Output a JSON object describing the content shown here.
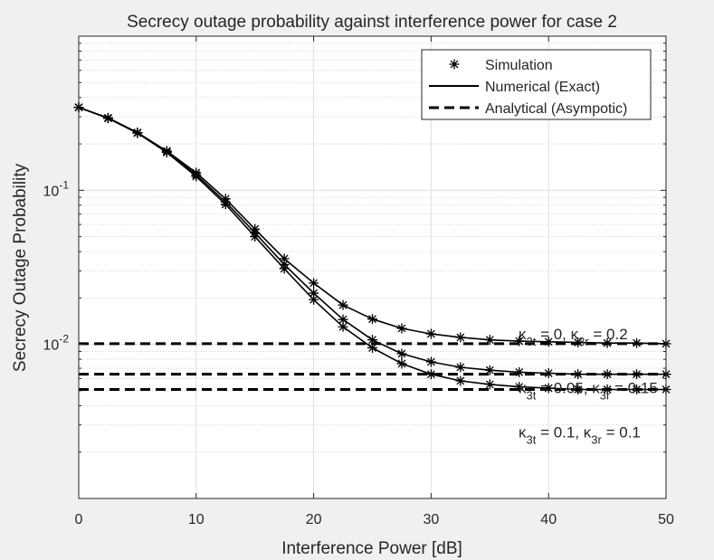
{
  "chart_data": {
    "type": "line",
    "title": "Secrecy outage probability against interference power for case 2",
    "xlabel": "Interference Power [dB]",
    "ylabel": "Secrecy Outage Probability",
    "xlim": [
      0,
      50
    ],
    "ylim": [
      0.001,
      1
    ],
    "yscale": "log",
    "grid": true,
    "legend_position": "top-right",
    "x_ticks": [
      0,
      10,
      20,
      30,
      40,
      50
    ],
    "y_ticks": [
      {
        "value": 0.1,
        "base": "10",
        "exp": "-1"
      },
      {
        "value": 0.01,
        "base": "10",
        "exp": "-2"
      }
    ],
    "legend": [
      "Simulation",
      "Numerical (Exact)",
      "Analytical (Asympotic)"
    ],
    "x": [
      0,
      2.5,
      5,
      7.5,
      10,
      12.5,
      15,
      17.5,
      20,
      22.5,
      25,
      27.5,
      30,
      32.5,
      35,
      37.5,
      40,
      42.5,
      45,
      47.5,
      50
    ],
    "series": [
      {
        "annotation": {
          "kappa_t": "3t",
          "val_t": "0",
          "kappa_r": "3r",
          "val_r": "0.2"
        },
        "numerical": [
          0.345,
          0.295,
          0.237,
          0.18,
          0.13,
          0.088,
          0.056,
          0.036,
          0.025,
          0.018,
          0.0146,
          0.0127,
          0.0117,
          0.0111,
          0.0107,
          0.0105,
          0.0104,
          0.0103,
          0.0102,
          0.0102,
          0.0101
        ],
        "asymptotic": 0.0101
      },
      {
        "annotation": {
          "kappa_t": "3t",
          "val_t": "0.05",
          "kappa_r": "3r",
          "val_r": "0.15"
        },
        "numerical": [
          0.345,
          0.294,
          0.236,
          0.178,
          0.126,
          0.084,
          0.053,
          0.033,
          0.0215,
          0.0145,
          0.0107,
          0.0087,
          0.0077,
          0.0071,
          0.0068,
          0.0066,
          0.0065,
          0.0064,
          0.0064,
          0.0064,
          0.0064
        ],
        "asymptotic": 0.0064
      },
      {
        "annotation": {
          "kappa_t": "3t",
          "val_t": "0.1",
          "kappa_r": "3r",
          "val_r": "0.1"
        },
        "numerical": [
          0.345,
          0.293,
          0.235,
          0.176,
          0.123,
          0.081,
          0.05,
          0.031,
          0.0195,
          0.013,
          0.0095,
          0.0075,
          0.0064,
          0.0058,
          0.0055,
          0.0053,
          0.0052,
          0.0051,
          0.0051,
          0.0051,
          0.0051
        ],
        "asymptotic": 0.0051
      }
    ]
  }
}
